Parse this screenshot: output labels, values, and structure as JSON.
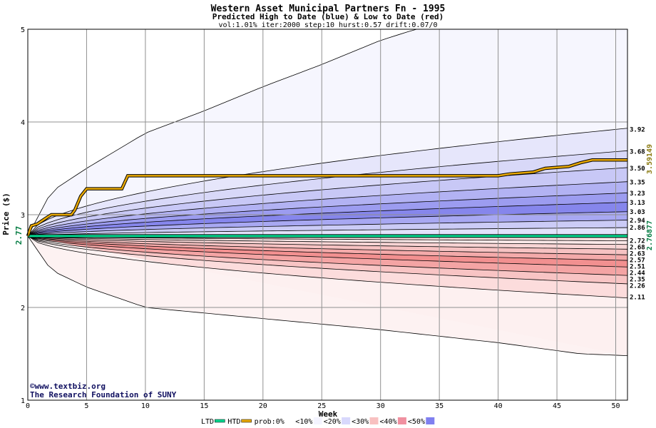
{
  "chart_data": {
    "type": "area",
    "title": "Western Asset Municipal Partners Fn - 1995",
    "subtitle": "Predicted High to Date (blue) &  Low to Date (red)",
    "params": "vol:1.01% iter:2000 step:10 hurst:0.57 drift:0.07/0",
    "xlabel": "Week",
    "ylabel": "Price ($)",
    "xlim": [
      0,
      51
    ],
    "ylim": [
      1,
      5
    ],
    "x_ticks": [
      0,
      5,
      10,
      15,
      20,
      25,
      30,
      35,
      40,
      45,
      50
    ],
    "y_ticks": [
      1,
      2,
      3,
      4,
      5
    ],
    "start_price": 2.77,
    "start_price_label": "2.77",
    "grid": true,
    "high_to_date": {
      "name": "HTD",
      "color": "#e8a800",
      "final_value": 3.59149,
      "final_label": "3.59149",
      "points": [
        [
          0,
          2.77
        ],
        [
          0.3,
          2.88
        ],
        [
          0.8,
          2.9
        ],
        [
          1.5,
          2.96
        ],
        [
          2,
          3.0
        ],
        [
          3.7,
          3.0
        ],
        [
          4,
          3.05
        ],
        [
          4.5,
          3.2
        ],
        [
          5,
          3.28
        ],
        [
          8,
          3.28
        ],
        [
          8.5,
          3.42
        ],
        [
          40,
          3.42
        ],
        [
          41,
          3.44
        ],
        [
          43,
          3.46
        ],
        [
          44,
          3.5
        ],
        [
          46,
          3.52
        ],
        [
          47,
          3.56
        ],
        [
          48,
          3.59
        ],
        [
          51,
          3.59
        ]
      ]
    },
    "low_to_date": {
      "name": "LTD",
      "color": "#00d890",
      "final_value": 2.76877,
      "final_label": "2.76877",
      "points": [
        [
          0,
          2.77
        ],
        [
          51,
          2.77
        ]
      ]
    },
    "right_labels": [
      "3.92",
      "3.68",
      "3.50",
      "3.35",
      "3.23",
      "3.13",
      "3.03",
      "2.94",
      "2.86",
      "2.72",
      "2.68",
      "2.63",
      "2.57",
      "2.51",
      "2.44",
      "2.35",
      "2.26",
      "2.11"
    ],
    "band_end_values": [
      3.92,
      3.68,
      3.5,
      3.35,
      3.23,
      3.13,
      3.03,
      2.94,
      2.86,
      2.72,
      2.68,
      2.63,
      2.57,
      2.51,
      2.44,
      2.35,
      2.26,
      2.11
    ],
    "outer_upper": [
      [
        0,
        2.77
      ],
      [
        2,
        3.25
      ],
      [
        5,
        3.5
      ],
      [
        10,
        3.88
      ],
      [
        15,
        4.12
      ],
      [
        20,
        4.38
      ],
      [
        25,
        4.62
      ],
      [
        30,
        4.88
      ],
      [
        33,
        5.0
      ]
    ],
    "outer_lower": [
      [
        0,
        2.77
      ],
      [
        2,
        2.4
      ],
      [
        5,
        2.22
      ],
      [
        10,
        2.0
      ],
      [
        20,
        1.88
      ],
      [
        30,
        1.76
      ],
      [
        40,
        1.62
      ],
      [
        47,
        1.5
      ],
      [
        51,
        1.48
      ]
    ],
    "legend": [
      {
        "label": "LTD",
        "color": "#00d890",
        "kind": "line"
      },
      {
        "label": "HTD",
        "color": "#e8a800",
        "kind": "line"
      },
      {
        "label": "prob:0%",
        "color": "#ffffff",
        "kind": "swatch"
      },
      {
        "label": "<10%",
        "color": "#f4f4ff",
        "kind": "swatch"
      },
      {
        "label": "<20%",
        "color": "#d8d8fc",
        "kind": "swatch"
      },
      {
        "label": "<30%",
        "color": "#f8c0c0",
        "kind": "swatch"
      },
      {
        "label": "<40%",
        "color": "#f090a0",
        "kind": "swatch"
      },
      {
        "label": "<50%",
        "color": "#8080f0",
        "kind": "swatch"
      }
    ]
  },
  "watermark": {
    "line1": "©www.textbiz.org",
    "line2": "The Research Foundation of SUNY"
  }
}
